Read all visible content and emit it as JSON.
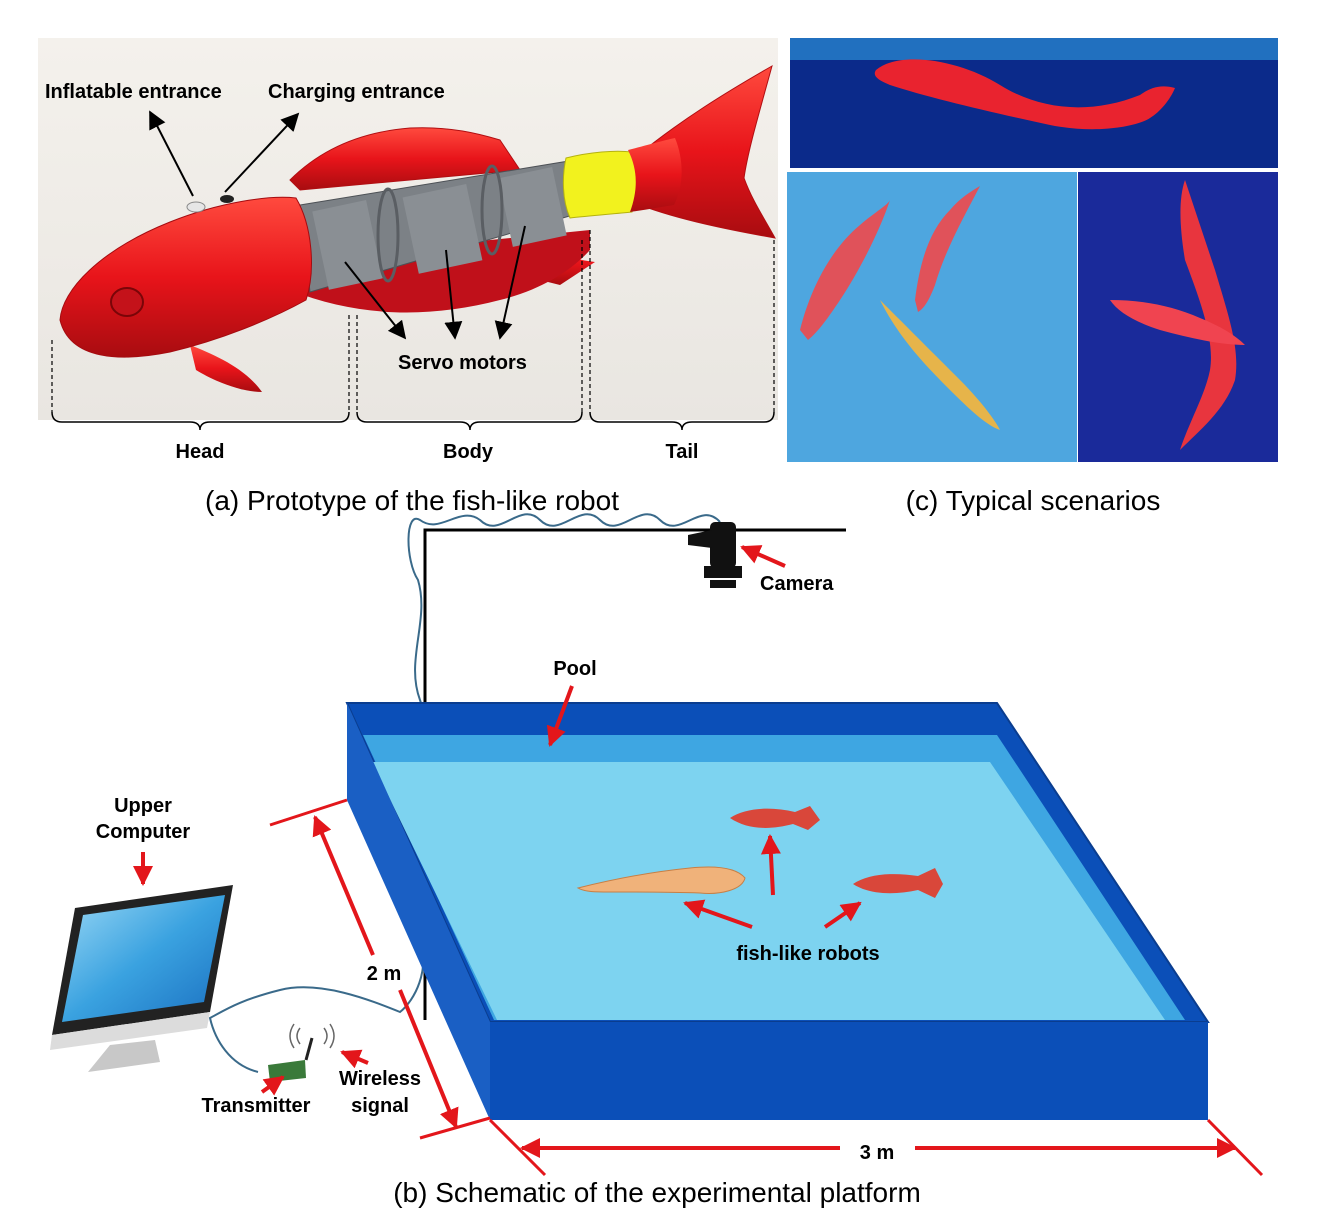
{
  "panel_a": {
    "caption": "(a) Prototype of  the fish-like robot",
    "labels": {
      "inflatable": "Inflatable entrance",
      "charging": "Charging entrance",
      "servo": "Servo motors",
      "head": "Head",
      "body": "Body",
      "tail": "Tail"
    }
  },
  "panel_b": {
    "caption": "(b) Schematic of the experimental platform",
    "labels": {
      "camera": "Camera",
      "pool": "Pool",
      "upper_computer_line1": "Upper",
      "upper_computer_line2": "Computer",
      "dim_width": "2 m",
      "dim_length": "3 m",
      "robots": "fish-like robots",
      "transmitter": "Transmitter",
      "wireless_line1": "Wireless",
      "wireless_line2": "signal"
    }
  },
  "panel_c": {
    "caption": "(c) Typical scenarios"
  },
  "colors": {
    "fish_red": "#e8141a",
    "servo_gray": "#7c8186",
    "joint_yellow": "#f2f21e",
    "pool_dark": "#0b4fb8",
    "pool_water": "#7dd3f0",
    "pool_rim": "#3ea6e2",
    "arrow_red": "#e3161b",
    "tank_blue": "#0b2a8a",
    "tank_light": "#2b8fd6",
    "robot_orange": "#f0b27a",
    "robot_red": "#d9473a"
  },
  "icons": [
    "fish-robot-render",
    "camera-icon",
    "monitor-icon",
    "transmitter-board-icon",
    "wireless-signal-icon"
  ]
}
